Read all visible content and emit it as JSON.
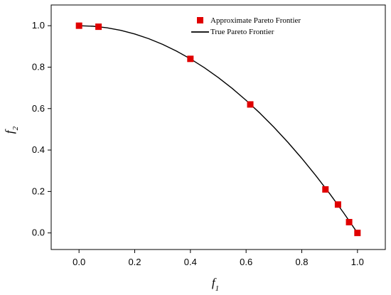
{
  "chart_data": {
    "type": "scatter",
    "xlabel": "f",
    "xlabel_subscript": "1",
    "ylabel": "f",
    "ylabel_subscript": "2",
    "xlim": [
      -0.1,
      1.1
    ],
    "ylim": [
      -0.08,
      1.1
    ],
    "x_ticks": [
      0.0,
      0.2,
      0.4,
      0.6,
      0.8,
      1.0
    ],
    "y_ticks": [
      0.0,
      0.2,
      0.4,
      0.6,
      0.8,
      1.0
    ],
    "x_tick_labels": [
      "0.0",
      "0.2",
      "0.4",
      "0.6",
      "0.8",
      "1.0"
    ],
    "y_tick_labels": [
      "0.0",
      "0.2",
      "0.4",
      "0.6",
      "0.8",
      "1.0"
    ],
    "grid": false,
    "legend_position": "top-right",
    "series": [
      {
        "name": "Approximate Pareto Frontier",
        "kind": "scatter",
        "marker": "square",
        "color": "#e00000",
        "x": [
          0.0,
          0.07,
          0.4,
          0.615,
          0.885,
          0.93,
          0.97,
          1.0
        ],
        "y": [
          1.0,
          0.995,
          0.84,
          0.62,
          0.21,
          0.137,
          0.052,
          0.0
        ]
      },
      {
        "name": "True Pareto Frontier",
        "kind": "line",
        "color": "#000000",
        "x": [
          0.0,
          0.05,
          0.1,
          0.15,
          0.2,
          0.25,
          0.3,
          0.35,
          0.4,
          0.45,
          0.5,
          0.55,
          0.6,
          0.65,
          0.7,
          0.75,
          0.8,
          0.85,
          0.9,
          0.95,
          1.0
        ],
        "y": [
          1.0,
          0.9975,
          0.99,
          0.9775,
          0.96,
          0.9375,
          0.91,
          0.8775,
          0.84,
          0.7975,
          0.75,
          0.6975,
          0.64,
          0.5775,
          0.51,
          0.4375,
          0.36,
          0.2775,
          0.19,
          0.0975,
          0.0
        ]
      }
    ]
  }
}
